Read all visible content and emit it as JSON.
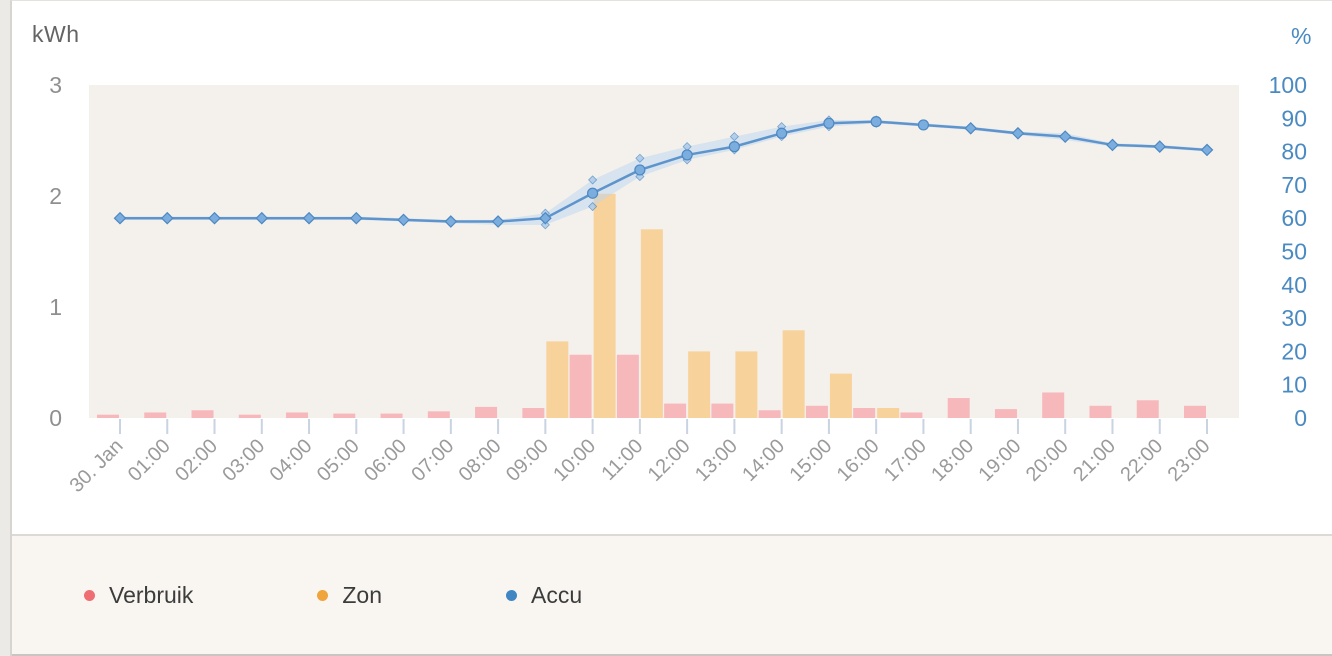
{
  "axis_titles": {
    "left": "kWh",
    "right": "%"
  },
  "legend": {
    "items": [
      {
        "label": "Verbruik",
        "color": "#ee6e73"
      },
      {
        "label": "Zon",
        "color": "#f0a43c"
      },
      {
        "label": "Accu",
        "color": "#4186c2"
      }
    ]
  },
  "chart_data": {
    "type": "bar",
    "subtype": "combo bar + line with range band",
    "title": "",
    "categories": [
      "30. Jan",
      "01:00",
      "02:00",
      "03:00",
      "04:00",
      "05:00",
      "06:00",
      "07:00",
      "08:00",
      "09:00",
      "10:00",
      "11:00",
      "12:00",
      "13:00",
      "14:00",
      "15:00",
      "16:00",
      "17:00",
      "18:00",
      "19:00",
      "20:00",
      "21:00",
      "22:00",
      "23:00"
    ],
    "left_axis": {
      "label": "kWh",
      "ticks": [
        3,
        2,
        1,
        0
      ],
      "range": [
        0,
        3
      ]
    },
    "right_axis": {
      "label": "%",
      "ticks": [
        100,
        90,
        80,
        70,
        60,
        50,
        40,
        30,
        20,
        10,
        0
      ],
      "range": [
        0,
        100
      ]
    },
    "grid": false,
    "legend_position": "bottom",
    "plot_bg": "#f4f1ec",
    "tick_color": "#c9d3e1",
    "left_label_color": "#8f8f8f",
    "right_label_color": "#4a8ac2",
    "x_label_color": "#9a9a9a",
    "series": [
      {
        "name": "Verbruik",
        "type": "bar",
        "unit": "kWh",
        "axis": "left",
        "color": "#ee6e73",
        "bar_color": "#f7b8bc",
        "values": [
          0.03,
          0.05,
          0.07,
          0.03,
          0.05,
          0.04,
          0.04,
          0.06,
          0.1,
          0.09,
          0.57,
          0.57,
          0.13,
          0.13,
          0.07,
          0.11,
          0.09,
          0.05,
          0.18,
          0.08,
          0.23,
          0.11,
          0.16,
          0.11
        ]
      },
      {
        "name": "Zon",
        "type": "bar",
        "unit": "kWh",
        "axis": "left",
        "color": "#f0a43c",
        "bar_color": "#f8d29b",
        "values": [
          0,
          0,
          0,
          0,
          0,
          0,
          0,
          0,
          0,
          0.69,
          2.02,
          1.7,
          0.6,
          0.6,
          0.79,
          0.4,
          0.09,
          0,
          0,
          0,
          0,
          0,
          0,
          0
        ]
      },
      {
        "name": "Accu",
        "type": "line",
        "unit": "%",
        "axis": "right",
        "color": "#4186c2",
        "line_color": "#5e94cb",
        "marker_fill": "#7badde",
        "marker_stroke": "#4d88c2",
        "band_fill": "#b9d5ef",
        "values": [
          60,
          60,
          60,
          60,
          60,
          60,
          59.5,
          59,
          59,
          60,
          67.5,
          74.5,
          79,
          81.5,
          85.5,
          88.5,
          89,
          88,
          87,
          85.5,
          84.5,
          82,
          81.5,
          80.5
        ],
        "band_upper": [
          60.5,
          60.5,
          60.5,
          60.5,
          60.5,
          60.5,
          60,
          59.5,
          59.5,
          61.5,
          71.5,
          78,
          81.5,
          84.5,
          87.5,
          89.5,
          89.5,
          88.5,
          87.5,
          86,
          85.5,
          82.5,
          82,
          81
        ],
        "band_lower": [
          59.5,
          59.5,
          59.5,
          59.5,
          59.5,
          59.5,
          59,
          58.5,
          58,
          58,
          63.5,
          72.5,
          77.5,
          80.5,
          84.5,
          87.5,
          88.5,
          87.5,
          86.5,
          85,
          83.5,
          81.5,
          81,
          80
        ]
      }
    ]
  }
}
